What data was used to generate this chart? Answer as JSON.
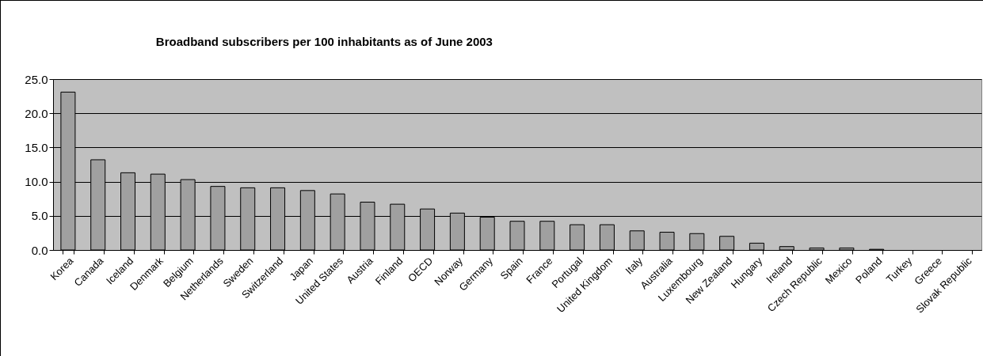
{
  "chart_data": {
    "type": "bar",
    "title": "Broadband subscribers per 100 inhabitants as of June 2003",
    "categories": [
      "Korea",
      "Canada",
      "Iceland",
      "Denmark",
      "Belgium",
      "Netherlands",
      "Sweden",
      "Switzerland",
      "Japan",
      "United States",
      "Austria",
      "Finland",
      "OECD",
      "Norway",
      "Germany",
      "Spain",
      "France",
      "Portugal",
      "United Kingdom",
      "Italy",
      "Australia",
      "Luxembourg",
      "New Zealand",
      "Hungary",
      "Ireland",
      "Czech Republic",
      "Mexico",
      "Poland",
      "Turkey",
      "Greece",
      "Slovak Republic"
    ],
    "values": [
      23.1,
      13.2,
      11.3,
      11.1,
      10.3,
      9.3,
      9.1,
      9.1,
      8.7,
      8.2,
      7.0,
      6.7,
      6.0,
      5.4,
      4.8,
      4.2,
      4.2,
      3.7,
      3.7,
      2.8,
      2.6,
      2.4,
      2.0,
      1.0,
      0.5,
      0.3,
      0.3,
      0.1,
      0,
      0,
      0
    ],
    "color": "#a0a0a0",
    "ylim": [
      0,
      25
    ],
    "yticks": [
      {
        "value": 0,
        "label": "0.0"
      },
      {
        "value": 5,
        "label": "5.0"
      },
      {
        "value": 10,
        "label": "10.0"
      },
      {
        "value": 15,
        "label": "15.0"
      },
      {
        "value": 20,
        "label": "20.0"
      },
      {
        "value": 25,
        "label": "25.0"
      }
    ],
    "grid": "y"
  }
}
